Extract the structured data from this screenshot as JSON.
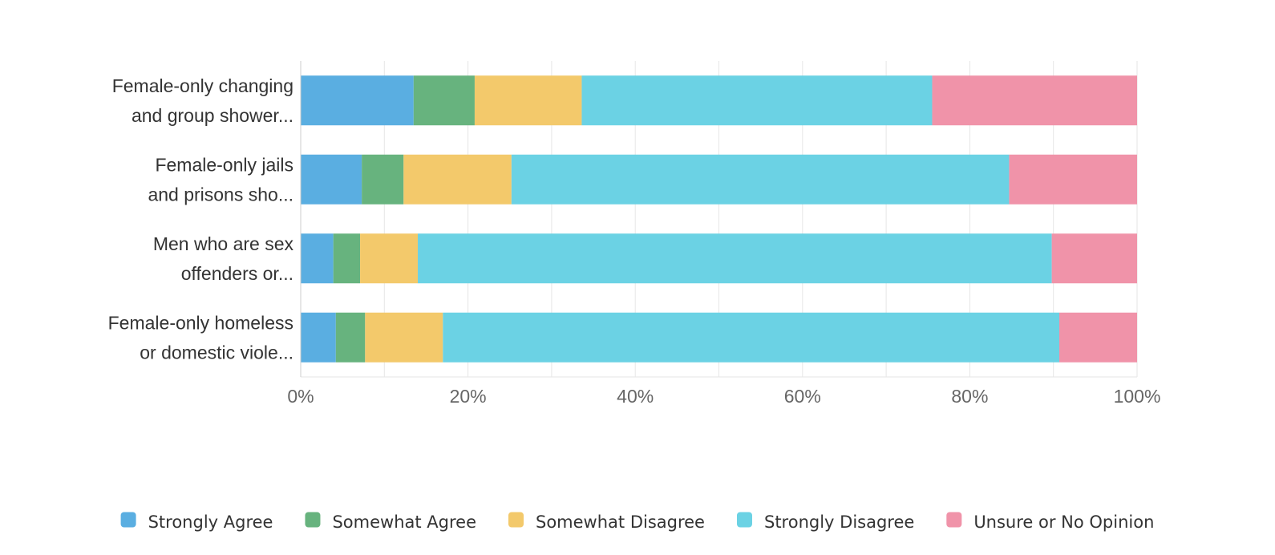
{
  "chart_data": {
    "type": "bar",
    "orientation": "horizontal",
    "stacked": true,
    "normalized": true,
    "categories": [
      "Female-only changing and group shower...",
      "Female-only jails and prisons sho...",
      "Men who are sex offenders or...",
      "Female-only homeless or domestic viole..."
    ],
    "category_lines": [
      [
        "Female-only changing",
        "and group shower..."
      ],
      [
        "Female-only jails",
        "and prisons sho..."
      ],
      [
        "Men who are sex",
        "offenders or..."
      ],
      [
        "Female-only homeless",
        "or domestic viole..."
      ]
    ],
    "series": [
      {
        "name": "Strongly Agree",
        "color": "#5aaee1",
        "values": [
          13.5,
          7.3,
          3.9,
          4.2
        ]
      },
      {
        "name": "Somewhat Agree",
        "color": "#67b37e",
        "values": [
          7.3,
          5.0,
          3.2,
          3.5
        ]
      },
      {
        "name": "Somewhat Disagree",
        "color": "#f3c96b",
        "values": [
          12.8,
          12.9,
          6.9,
          9.3
        ]
      },
      {
        "name": "Strongly Disagree",
        "color": "#6bd2e4",
        "values": [
          41.9,
          59.5,
          75.8,
          73.7
        ]
      },
      {
        "name": "Unsure or No Opinion",
        "color": "#f093a9",
        "values": [
          24.5,
          15.3,
          10.2,
          9.3
        ]
      }
    ],
    "xlim": [
      0,
      100
    ],
    "xticks": [
      "0%",
      "20%",
      "40%",
      "60%",
      "80%",
      "100%"
    ],
    "grid": true,
    "legend_position": "bottom"
  }
}
